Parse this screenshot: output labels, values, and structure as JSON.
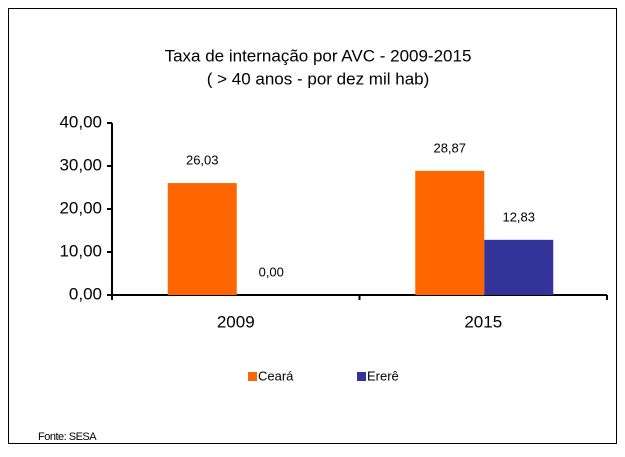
{
  "chart_data": {
    "type": "bar",
    "title": "Taxa de internação por AVC - 2009-2015",
    "subtitle": "( > 40 anos - por dez mil hab)",
    "categories": [
      "2009",
      "2015"
    ],
    "series": [
      {
        "name": "Ceará",
        "color": "#ff6600",
        "values": [
          26.03,
          28.87
        ],
        "value_labels": [
          "26,03",
          "28,87"
        ]
      },
      {
        "name": "Ererê",
        "color": "#333399",
        "values": [
          0,
          12.83
        ],
        "value_labels": [
          "0,00",
          "12,83"
        ]
      }
    ],
    "ylim": [
      0,
      40
    ],
    "yticks": [
      {
        "value": 0,
        "label": "0,00"
      },
      {
        "value": 10,
        "label": "10,00"
      },
      {
        "value": 20,
        "label": "20,00"
      },
      {
        "value": 30,
        "label": "30,00"
      },
      {
        "value": 40,
        "label": "40,00"
      }
    ],
    "legend": "bottom",
    "source": "Fonte: SESA"
  }
}
